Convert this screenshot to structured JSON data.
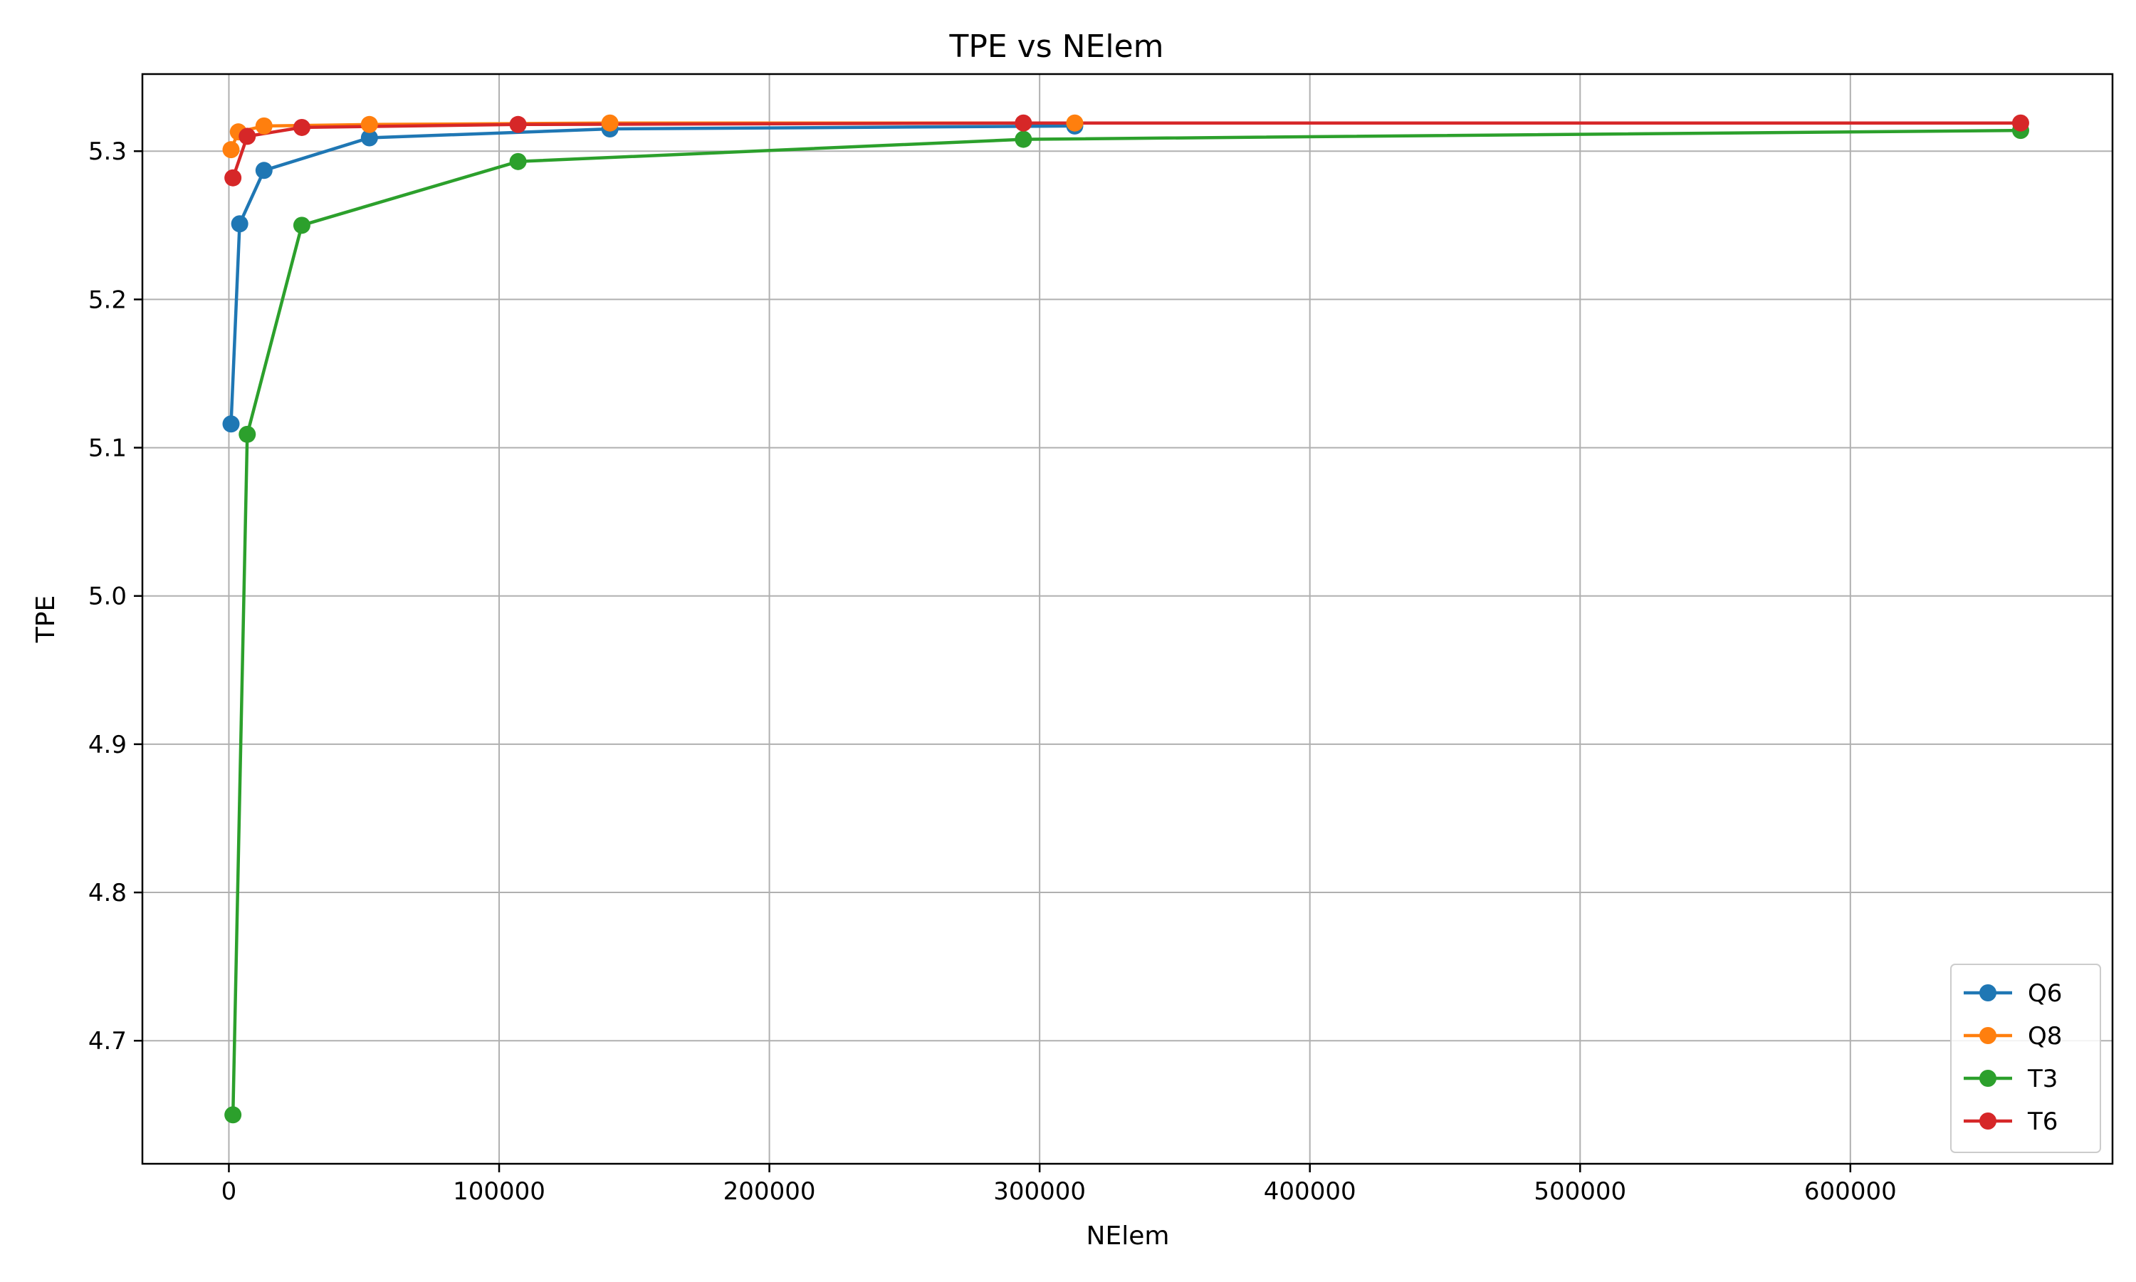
{
  "chart_data": {
    "type": "line",
    "title": "TPE vs NElem",
    "xlabel": "NElem",
    "ylabel": "TPE",
    "xlim": [
      -32000,
      697000
    ],
    "ylim": [
      4.617,
      5.352
    ],
    "xticks": [
      0,
      100000,
      200000,
      300000,
      400000,
      500000,
      600000
    ],
    "xtick_labels": [
      "0",
      "100000",
      "200000",
      "300000",
      "400000",
      "500000",
      "600000"
    ],
    "yticks": [
      4.7,
      4.8,
      4.9,
      5.0,
      5.1,
      5.2,
      5.3
    ],
    "ytick_labels": [
      "4.7",
      "4.8",
      "4.9",
      "5.0",
      "5.1",
      "5.2",
      "5.3"
    ],
    "grid": true,
    "legend_position": "bottom-right",
    "series": [
      {
        "name": "Q6",
        "color": "#1f77b4",
        "x": [
          800,
          4000,
          13000,
          52000,
          141000,
          313000
        ],
        "y": [
          5.116,
          5.251,
          5.287,
          5.309,
          5.315,
          5.317
        ]
      },
      {
        "name": "Q8",
        "color": "#ff7f0e",
        "x": [
          800,
          3500,
          13000,
          52000,
          141000,
          313000
        ],
        "y": [
          5.301,
          5.313,
          5.317,
          5.318,
          5.319,
          5.319
        ]
      },
      {
        "name": "T3",
        "color": "#2ca02c",
        "x": [
          1500,
          6800,
          27000,
          107000,
          294000,
          663000
        ],
        "y": [
          4.65,
          5.109,
          5.25,
          5.293,
          5.308,
          5.314
        ]
      },
      {
        "name": "T6",
        "color": "#d62728",
        "x": [
          1500,
          6800,
          27000,
          107000,
          294000,
          663000
        ],
        "y": [
          5.282,
          5.31,
          5.316,
          5.318,
          5.319,
          5.319
        ]
      }
    ]
  }
}
